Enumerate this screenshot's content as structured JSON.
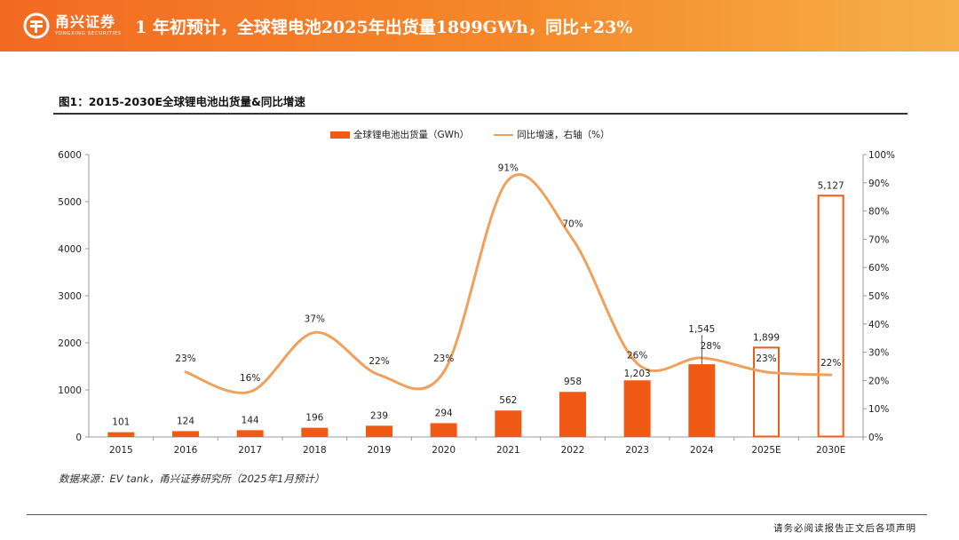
{
  "header": {
    "brand_cn": "甬兴证券",
    "brand_en": "YONGXING SECURITIES",
    "title": "1 年初预计，全球锂电池2025年出货量1899GWh，同比+23%"
  },
  "figure": {
    "label": "图1：2015-2030E全球锂电池出货量&同比增速"
  },
  "chart_data": {
    "type": "bar+line",
    "categories": [
      "2015",
      "2016",
      "2017",
      "2018",
      "2019",
      "2020",
      "2021",
      "2022",
      "2023",
      "2024",
      "2025E",
      "2030E"
    ],
    "series": [
      {
        "name": "全球锂电池出货量（GWh）",
        "type": "bar",
        "axis": "left",
        "values": [
          101,
          124,
          144,
          196,
          239,
          294,
          562,
          958,
          1203,
          1545,
          1899,
          5127
        ],
        "value_labels": [
          "101",
          "124",
          "144",
          "196",
          "239",
          "294",
          "562",
          "958",
          "1,203",
          "1,545",
          "1,899",
          "5,127"
        ],
        "forecast": [
          false,
          false,
          false,
          false,
          false,
          false,
          false,
          false,
          false,
          false,
          true,
          true
        ]
      },
      {
        "name": "同比增速，右轴（%）",
        "type": "line",
        "axis": "right",
        "values": [
          null,
          23,
          16,
          37,
          22,
          23,
          91,
          70,
          26,
          28,
          23,
          22
        ],
        "value_labels": [
          null,
          "23%",
          "16%",
          "37%",
          "22%",
          "23%",
          "91%",
          "70%",
          "26%",
          "28%",
          "23%",
          "22%"
        ]
      }
    ],
    "y_left": {
      "range": [
        0,
        6000
      ],
      "ticks": [
        "0",
        "1000",
        "2000",
        "3000",
        "4000",
        "5000",
        "6000"
      ]
    },
    "y_right": {
      "range": [
        0,
        100
      ],
      "ticks": [
        "0%",
        "10%",
        "20%",
        "30%",
        "40%",
        "50%",
        "60%",
        "70%",
        "80%",
        "90%",
        "100%"
      ]
    },
    "colors": {
      "bar": "#f05a14",
      "line": "#f0a05a",
      "axis": "#999999",
      "text": "#222222"
    }
  },
  "footer": {
    "source": "数据来源：EV tank，甬兴证券研究所（2025年1月预计）",
    "disclaimer": "请务必阅读报告正文后各项声明"
  }
}
